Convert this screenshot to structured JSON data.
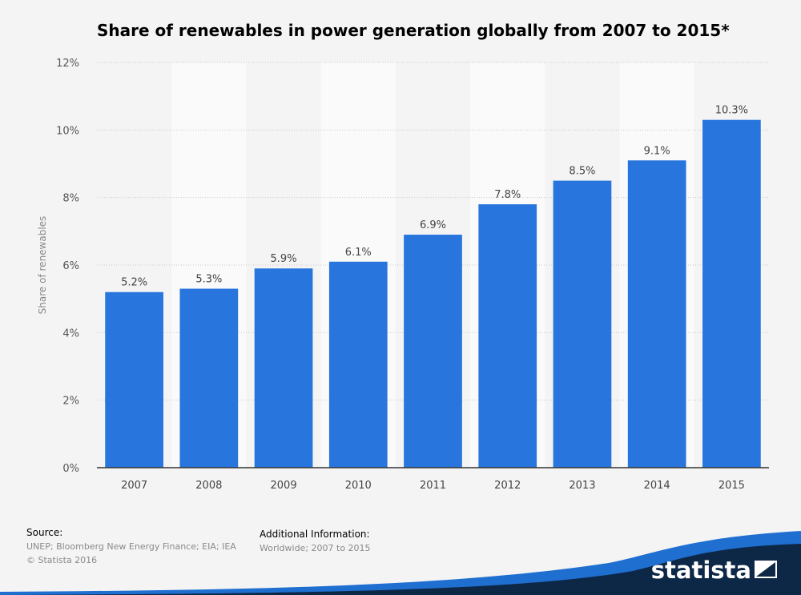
{
  "chart_data": {
    "type": "bar",
    "title": "Share of renewables in power generation globally from 2007 to 2015*",
    "xlabel": "",
    "ylabel": "Share of renewables",
    "categories": [
      "2007",
      "2008",
      "2009",
      "2010",
      "2011",
      "2012",
      "2013",
      "2014",
      "2015"
    ],
    "values": [
      5.2,
      5.3,
      5.9,
      6.1,
      6.9,
      7.8,
      8.5,
      9.1,
      10.3
    ],
    "value_labels": [
      "5.2%",
      "5.3%",
      "5.9%",
      "6.1%",
      "6.9%",
      "7.8%",
      "8.5%",
      "9.1%",
      "10.3%"
    ],
    "ylim": [
      0,
      12
    ],
    "yticks": [
      0,
      2,
      4,
      6,
      8,
      10,
      12
    ],
    "ytick_labels": [
      "0%",
      "2%",
      "4%",
      "6%",
      "8%",
      "10%",
      "12%"
    ],
    "grid": true,
    "bar_color": "#2876dd"
  },
  "footer": {
    "source_heading": "Source:",
    "source_text": "UNEP; Bloomberg New Energy Finance; EIA; IEA",
    "copyright": "© Statista 2016",
    "additional_heading": "Additional Information:",
    "additional_text": "Worldwide; 2007 to 2015"
  },
  "brand": {
    "name": "statista",
    "logo_icon": "statista-logo-icon",
    "accent": "#1f6fd1",
    "dark": "#0d2847"
  }
}
